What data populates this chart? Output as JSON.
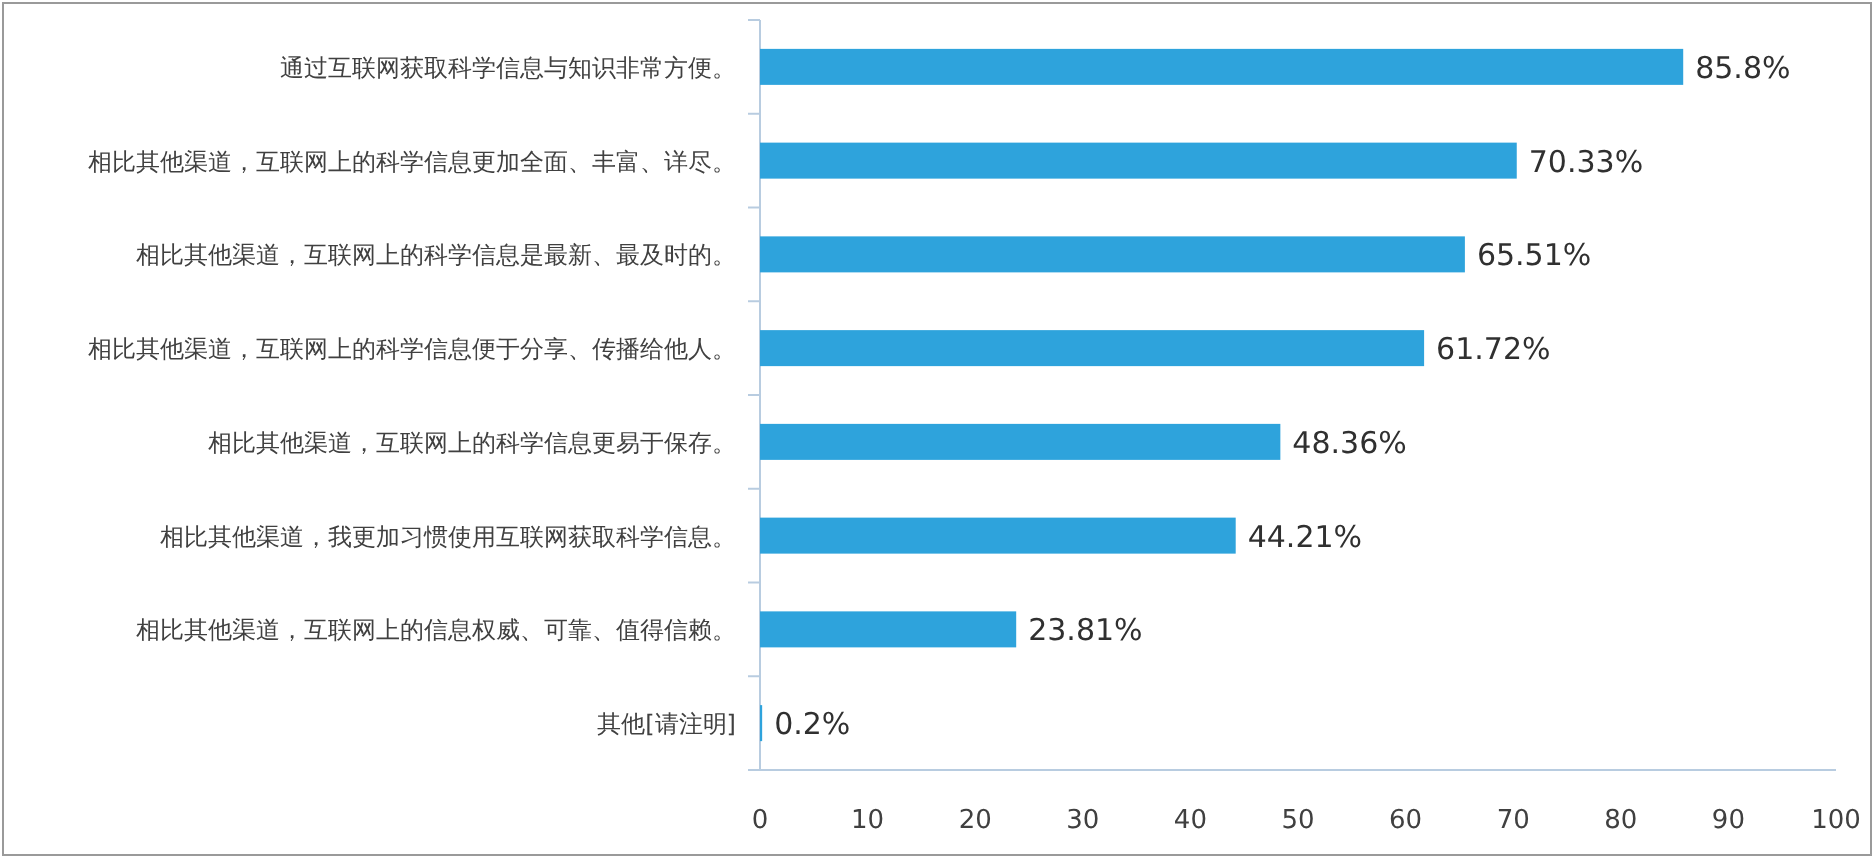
{
  "chart_data": {
    "type": "bar",
    "orientation": "horizontal",
    "categories": [
      "通过互联网获取科学信息与知识非常方便。",
      "相比其他渠道，互联网上的科学信息更加全面、丰富、详尽。",
      "相比其他渠道，互联网上的科学信息是最新、最及时的。",
      "相比其他渠道，互联网上的科学信息便于分享、传播给他人。",
      "相比其他渠道，互联网上的科学信息更易于保存。",
      "相比其他渠道，我更加习惯使用互联网获取科学信息。",
      "相比其他渠道，互联网上的信息权威、可靠、值得信赖。",
      "其他[请注明]"
    ],
    "values": [
      85.8,
      70.33,
      65.51,
      61.72,
      48.36,
      44.21,
      23.81,
      0.2
    ],
    "value_labels": [
      "85.8%",
      "70.33%",
      "65.51%",
      "61.72%",
      "48.36%",
      "44.21%",
      "23.81%",
      "0.2%"
    ],
    "color": "#2ea3dc",
    "xlim": [
      0,
      100
    ],
    "xticks": [
      0,
      10,
      20,
      30,
      40,
      50,
      60,
      70,
      80,
      90,
      100
    ]
  }
}
